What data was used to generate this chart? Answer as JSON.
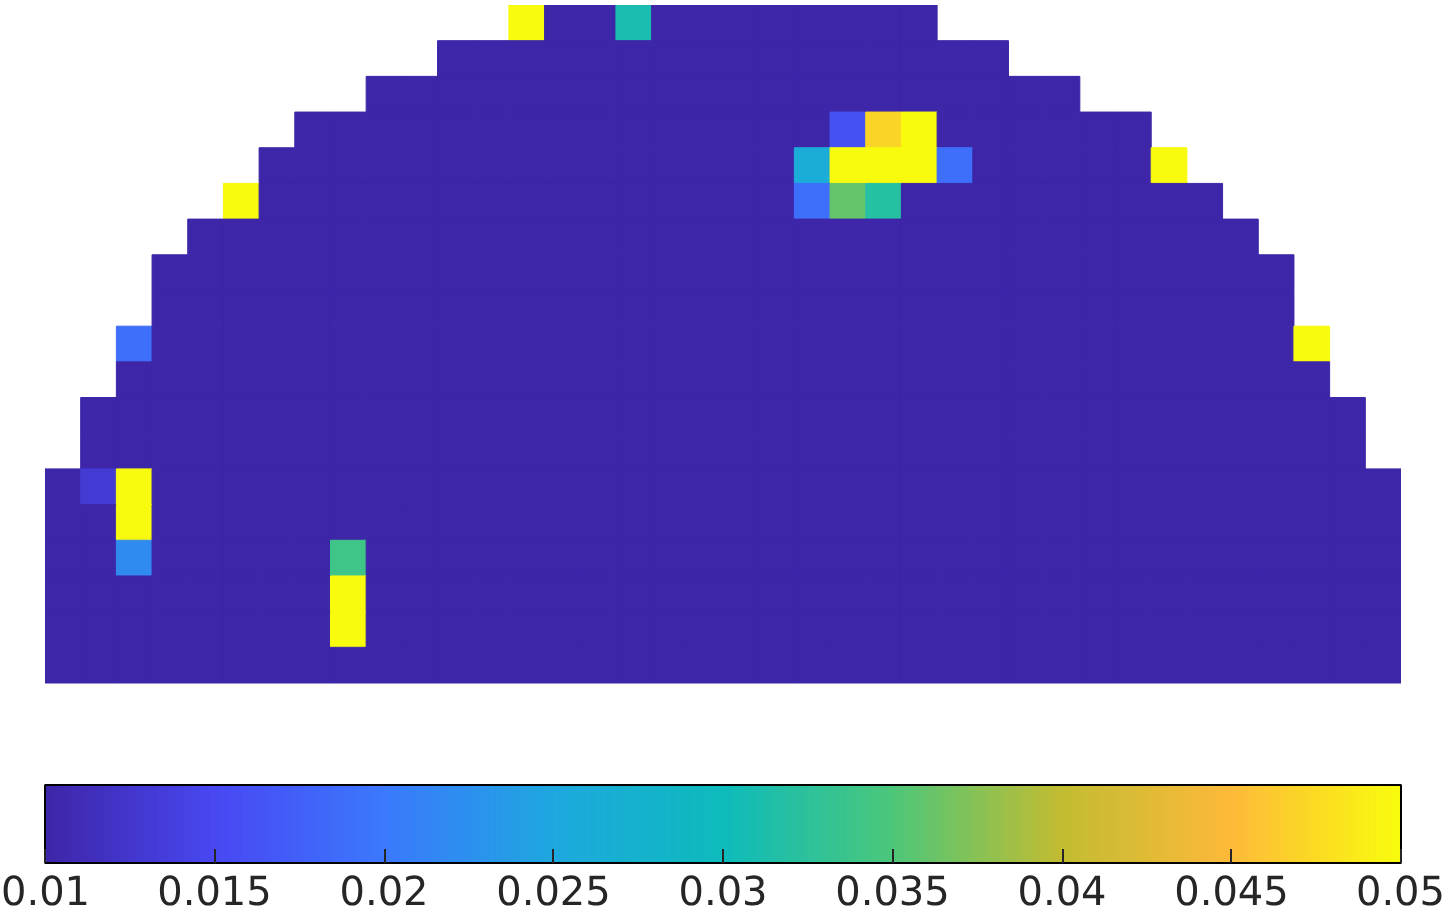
{
  "chart_data": {
    "type": "heatmap",
    "categories": [
      null,
      null,
      null,
      null,
      null,
      null,
      null,
      null,
      null,
      null,
      null,
      null,
      null,
      null,
      null,
      null,
      null,
      null,
      null,
      null,
      null,
      null,
      null,
      null,
      null,
      null,
      null,
      null,
      null,
      null,
      null,
      null,
      null,
      null,
      null,
      null,
      null,
      null
    ],
    "y_categories": [
      null,
      null,
      null,
      null,
      null,
      null,
      null,
      null,
      null,
      null,
      null,
      null,
      null,
      null,
      null,
      null,
      null,
      null,
      null
    ],
    "cells": [
      [
        null,
        null,
        null,
        null,
        null,
        null,
        null,
        null,
        null,
        null,
        null,
        null,
        null,
        0.05,
        0.01,
        0.01,
        0.031,
        0.01,
        0.01,
        0.01,
        0.01,
        0.01,
        0.01,
        0.01,
        0.01,
        null,
        null,
        null,
        null,
        null,
        null,
        null,
        null,
        null,
        null,
        null,
        null,
        null
      ],
      [
        null,
        null,
        null,
        null,
        null,
        null,
        null,
        null,
        null,
        null,
        null,
        0.01,
        0.01,
        0.01,
        0.01,
        0.01,
        0.01,
        0.01,
        0.01,
        0.01,
        0.01,
        0.01,
        0.01,
        0.01,
        0.01,
        0.01,
        0.01,
        null,
        null,
        null,
        null,
        null,
        null,
        null,
        null,
        null,
        null,
        null
      ],
      [
        null,
        null,
        null,
        null,
        null,
        null,
        null,
        null,
        null,
        0.01,
        0.01,
        0.01,
        0.01,
        0.01,
        0.01,
        0.01,
        0.01,
        0.01,
        0.01,
        0.01,
        0.01,
        0.01,
        0.01,
        0.01,
        0.01,
        0.01,
        0.01,
        0.01,
        0.01,
        null,
        null,
        null,
        null,
        null,
        null,
        null,
        null,
        null
      ],
      [
        null,
        null,
        null,
        null,
        null,
        null,
        null,
        0.01,
        0.01,
        0.01,
        0.01,
        0.01,
        0.01,
        0.01,
        0.01,
        0.01,
        0.01,
        0.01,
        0.01,
        0.01,
        0.01,
        0.01,
        0.016,
        0.047,
        0.05,
        0.01,
        0.01,
        0.01,
        0.01,
        0.01,
        0.01,
        null,
        null,
        null,
        null,
        null,
        null,
        null
      ],
      [
        null,
        null,
        null,
        null,
        null,
        null,
        0.01,
        0.01,
        0.01,
        0.01,
        0.01,
        0.01,
        0.01,
        0.01,
        0.01,
        0.01,
        0.01,
        0.01,
        0.01,
        0.01,
        0.01,
        0.026,
        0.05,
        0.05,
        0.05,
        0.019,
        0.01,
        0.01,
        0.01,
        0.01,
        0.01,
        0.05,
        null,
        null,
        null,
        null,
        null,
        null
      ],
      [
        null,
        null,
        null,
        null,
        null,
        0.05,
        0.01,
        0.01,
        0.01,
        0.01,
        0.01,
        0.01,
        0.01,
        0.01,
        0.01,
        0.01,
        0.01,
        0.01,
        0.01,
        0.01,
        0.01,
        0.019,
        0.036,
        0.032,
        0.01,
        0.01,
        0.01,
        0.01,
        0.01,
        0.01,
        0.01,
        0.01,
        0.01,
        null,
        null,
        null,
        null,
        null
      ],
      [
        null,
        null,
        null,
        null,
        0.01,
        0.01,
        0.01,
        0.01,
        0.01,
        0.01,
        0.01,
        0.01,
        0.01,
        0.01,
        0.01,
        0.01,
        0.01,
        0.01,
        0.01,
        0.01,
        0.01,
        0.01,
        0.01,
        0.01,
        0.01,
        0.01,
        0.01,
        0.01,
        0.01,
        0.01,
        0.01,
        0.01,
        0.01,
        0.01,
        null,
        null,
        null,
        null
      ],
      [
        null,
        null,
        null,
        0.01,
        0.01,
        0.01,
        0.01,
        0.01,
        0.01,
        0.01,
        0.01,
        0.01,
        0.01,
        0.01,
        0.01,
        0.01,
        0.01,
        0.01,
        0.01,
        0.01,
        0.01,
        0.01,
        0.01,
        0.01,
        0.01,
        0.01,
        0.01,
        0.01,
        0.01,
        0.01,
        0.01,
        0.01,
        0.01,
        0.01,
        0.01,
        null,
        null,
        null
      ],
      [
        null,
        null,
        null,
        0.01,
        0.01,
        0.01,
        0.01,
        0.01,
        0.01,
        0.01,
        0.01,
        0.01,
        0.01,
        0.01,
        0.01,
        0.01,
        0.01,
        0.01,
        0.01,
        0.01,
        0.01,
        0.01,
        0.01,
        0.01,
        0.01,
        0.01,
        0.01,
        0.01,
        0.01,
        0.01,
        0.01,
        0.01,
        0.01,
        0.01,
        0.01,
        null,
        null,
        null
      ],
      [
        null,
        null,
        0.019,
        0.01,
        0.01,
        0.01,
        0.01,
        0.01,
        0.01,
        0.01,
        0.01,
        0.01,
        0.01,
        0.01,
        0.01,
        0.01,
        0.01,
        0.01,
        0.01,
        0.01,
        0.01,
        0.01,
        0.01,
        0.01,
        0.01,
        0.01,
        0.01,
        0.01,
        0.01,
        0.01,
        0.01,
        0.01,
        0.01,
        0.01,
        0.01,
        0.05,
        null,
        null
      ],
      [
        null,
        null,
        0.01,
        0.01,
        0.01,
        0.01,
        0.01,
        0.01,
        0.01,
        0.01,
        0.01,
        0.01,
        0.01,
        0.01,
        0.01,
        0.01,
        0.01,
        0.01,
        0.01,
        0.01,
        0.01,
        0.01,
        0.01,
        0.01,
        0.01,
        0.01,
        0.01,
        0.01,
        0.01,
        0.01,
        0.01,
        0.01,
        0.01,
        0.01,
        0.01,
        0.01,
        null,
        null
      ],
      [
        null,
        0.01,
        0.01,
        0.01,
        0.01,
        0.01,
        0.01,
        0.01,
        0.01,
        0.01,
        0.01,
        0.01,
        0.01,
        0.01,
        0.01,
        0.01,
        0.01,
        0.01,
        0.01,
        0.01,
        0.01,
        0.01,
        0.01,
        0.01,
        0.01,
        0.01,
        0.01,
        0.01,
        0.01,
        0.01,
        0.01,
        0.01,
        0.01,
        0.01,
        0.01,
        0.01,
        0.01,
        null
      ],
      [
        null,
        0.01,
        0.01,
        0.01,
        0.01,
        0.01,
        0.01,
        0.01,
        0.01,
        0.01,
        0.01,
        0.01,
        0.01,
        0.01,
        0.01,
        0.01,
        0.01,
        0.01,
        0.01,
        0.01,
        0.01,
        0.01,
        0.01,
        0.01,
        0.01,
        0.01,
        0.01,
        0.01,
        0.01,
        0.01,
        0.01,
        0.01,
        0.01,
        0.01,
        0.01,
        0.01,
        0.01,
        null
      ],
      [
        0.01,
        0.013,
        0.05,
        0.01,
        0.01,
        0.01,
        0.01,
        0.01,
        0.01,
        0.01,
        0.01,
        0.01,
        0.01,
        0.01,
        0.01,
        0.01,
        0.01,
        0.01,
        0.01,
        0.01,
        0.01,
        0.01,
        0.01,
        0.01,
        0.01,
        0.01,
        0.01,
        0.01,
        0.01,
        0.01,
        0.01,
        0.01,
        0.01,
        0.01,
        0.01,
        0.01,
        0.01,
        0.01
      ],
      [
        0.01,
        0.01,
        0.05,
        0.01,
        0.01,
        0.01,
        0.01,
        0.01,
        0.01,
        0.01,
        0.01,
        0.01,
        0.01,
        0.01,
        0.01,
        0.01,
        0.01,
        0.01,
        0.01,
        0.01,
        0.01,
        0.01,
        0.01,
        0.01,
        0.01,
        0.01,
        0.01,
        0.01,
        0.01,
        0.01,
        0.01,
        0.01,
        0.01,
        0.01,
        0.01,
        0.01,
        0.01,
        0.01
      ],
      [
        0.01,
        0.01,
        0.022,
        0.01,
        0.01,
        0.01,
        0.01,
        0.01,
        0.034,
        0.01,
        0.01,
        0.01,
        0.01,
        0.01,
        0.01,
        0.01,
        0.01,
        0.01,
        0.01,
        0.01,
        0.01,
        0.01,
        0.01,
        0.01,
        0.01,
        0.01,
        0.01,
        0.01,
        0.01,
        0.01,
        0.01,
        0.01,
        0.01,
        0.01,
        0.01,
        0.01,
        0.01,
        0.01
      ],
      [
        0.01,
        0.01,
        0.01,
        0.01,
        0.01,
        0.01,
        0.01,
        0.01,
        0.05,
        0.01,
        0.01,
        0.01,
        0.01,
        0.01,
        0.01,
        0.01,
        0.01,
        0.01,
        0.01,
        0.01,
        0.01,
        0.01,
        0.01,
        0.01,
        0.01,
        0.01,
        0.01,
        0.01,
        0.01,
        0.01,
        0.01,
        0.01,
        0.01,
        0.01,
        0.01,
        0.01,
        0.01,
        0.01
      ],
      [
        0.01,
        0.01,
        0.01,
        0.01,
        0.01,
        0.01,
        0.01,
        0.01,
        0.05,
        0.01,
        0.01,
        0.01,
        0.01,
        0.01,
        0.01,
        0.01,
        0.01,
        0.01,
        0.01,
        0.01,
        0.01,
        0.01,
        0.01,
        0.01,
        0.01,
        0.01,
        0.01,
        0.01,
        0.01,
        0.01,
        0.01,
        0.01,
        0.01,
        0.01,
        0.01,
        0.01,
        0.01,
        0.01
      ],
      [
        0.01,
        0.01,
        0.01,
        0.01,
        0.01,
        0.01,
        0.01,
        0.01,
        0.01,
        0.01,
        0.01,
        0.01,
        0.01,
        0.01,
        0.01,
        0.01,
        0.01,
        0.01,
        0.01,
        0.01,
        0.01,
        0.01,
        0.01,
        0.01,
        0.01,
        0.01,
        0.01,
        0.01,
        0.01,
        0.01,
        0.01,
        0.01,
        0.01,
        0.01,
        0.01,
        0.01,
        0.01,
        0.01
      ]
    ],
    "clim": [
      0.01,
      0.05
    ],
    "cticks": [
      0.01,
      0.015,
      0.02,
      0.025,
      0.03,
      0.035,
      0.04,
      0.045,
      0.05
    ],
    "tick_labels": false
  }
}
